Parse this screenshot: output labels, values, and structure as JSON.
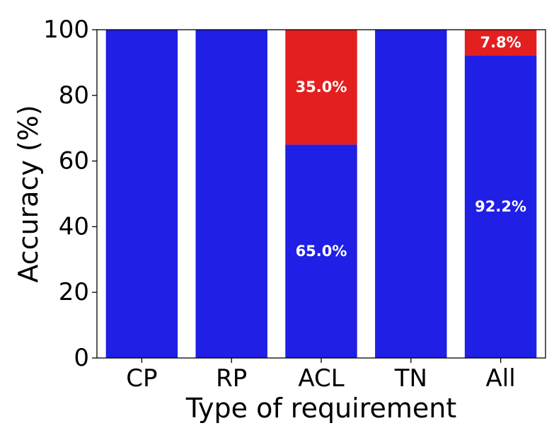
{
  "chart_data": {
    "type": "bar",
    "stacked": true,
    "categories": [
      "CP",
      "RP",
      "ACL",
      "TN",
      "All"
    ],
    "series": [
      {
        "values": [
          100,
          100,
          65.0,
          100,
          92.2
        ],
        "labels": [
          "",
          "",
          "65.0%",
          "",
          "92.2%"
        ],
        "color": "#1f1fe6"
      },
      {
        "values": [
          0,
          0,
          35.0,
          0,
          7.8
        ],
        "labels": [
          "",
          "",
          "35.0%",
          "",
          "7.8%"
        ],
        "color": "#e31f1f"
      }
    ],
    "xlabel": "Type of requirement",
    "ylabel": "Accuracy (%)",
    "ylim": [
      0,
      100
    ],
    "yticks": [
      0,
      20,
      40,
      60,
      80,
      100
    ],
    "grid": false,
    "legend": "none"
  }
}
